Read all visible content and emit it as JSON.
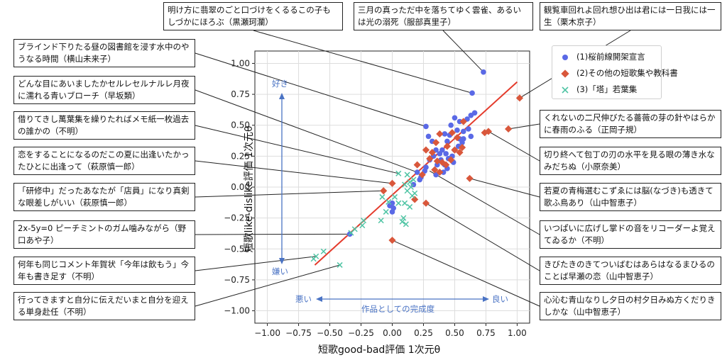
{
  "chart_data": {
    "type": "scatter",
    "xlabel": "短歌good-bad評価 1次元θ",
    "ylabel": "短歌like-dislike評価 1次元θ",
    "xlim": [
      -1.1,
      1.1
    ],
    "ylim": [
      -1.1,
      1.1
    ],
    "xticks": [
      "−1.00",
      "−0.75",
      "−0.50",
      "−0.25",
      "0.00",
      "0.25",
      "0.50",
      "0.75",
      "1.00"
    ],
    "yticks": [
      "1.00",
      "0.75",
      "0.50",
      "0.25",
      "0.00",
      "−0.25",
      "−0.50",
      "−0.75",
      "−1.00"
    ],
    "grid": true,
    "legend_position": "top-right",
    "series": [
      {
        "name": "(1)桜前線開架宣言",
        "color": "#5a69e6",
        "marker": "circle",
        "points": [
          [
            0.73,
            0.93
          ],
          [
            0.64,
            0.76
          ],
          [
            0.27,
            0.49
          ],
          [
            0.32,
            0.37
          ],
          [
            0.35,
            0.3
          ],
          [
            0.33,
            0.25
          ],
          [
            0.27,
            0.16
          ],
          [
            0.26,
            0.13
          ],
          [
            0.42,
            0.43
          ],
          [
            0.44,
            0.37
          ],
          [
            0.47,
            0.5
          ],
          [
            0.5,
            0.56
          ],
          [
            0.52,
            0.46
          ],
          [
            0.54,
            0.53
          ],
          [
            0.57,
            0.45
          ],
          [
            0.61,
            0.47
          ],
          [
            0.63,
            0.58
          ],
          [
            0.66,
            0.6
          ],
          [
            0.63,
            0.41
          ],
          [
            0.6,
            0.55
          ],
          [
            0.57,
            0.39
          ],
          [
            0.4,
            0.3
          ],
          [
            0.43,
            0.27
          ],
          [
            0.45,
            0.23
          ],
          [
            0.48,
            0.25
          ],
          [
            0.5,
            0.3
          ],
          [
            0.53,
            0.33
          ],
          [
            0.56,
            0.36
          ],
          [
            0.39,
            0.22
          ],
          [
            0.36,
            0.18
          ],
          [
            0.3,
            0.22
          ],
          [
            0.42,
            0.18
          ],
          [
            0.46,
            0.42
          ],
          [
            0.38,
            0.27
          ],
          [
            0.2,
            0.12
          ],
          [
            0.23,
            0.08
          ],
          [
            0.17,
            0.02
          ],
          [
            0.0,
            -0.13
          ],
          [
            -0.02,
            -0.15
          ],
          [
            0.01,
            -0.17
          ],
          [
            0.44,
            0.15
          ],
          [
            0.49,
            0.2
          ],
          [
            0.35,
            0.1
          ],
          [
            0.41,
            0.12
          ],
          [
            0.54,
            0.39
          ],
          [
            0.29,
            0.41
          ],
          [
            0.22,
            0.06
          ],
          [
            -0.34,
            -0.38
          ],
          [
            0.0,
            -0.2
          ]
        ]
      },
      {
        "name": "(2)その他の短歌集や教科書",
        "color": "#d9573b",
        "marker": "diamond",
        "points": [
          [
            1.02,
            0.72
          ],
          [
            0.93,
            0.47
          ],
          [
            0.77,
            0.45
          ],
          [
            0.74,
            0.44
          ],
          [
            0.62,
            0.07
          ],
          [
            0.27,
            -0.13
          ],
          [
            0.18,
            -0.1
          ],
          [
            0.0,
            -0.43
          ],
          [
            0.0,
            0.03
          ],
          [
            -0.07,
            -0.03
          ],
          [
            0.57,
            0.53
          ],
          [
            0.48,
            0.44
          ],
          [
            0.44,
            0.33
          ],
          [
            0.38,
            0.43
          ],
          [
            0.35,
            0.36
          ],
          [
            0.4,
            0.2
          ],
          [
            0.5,
            0.3
          ],
          [
            0.56,
            0.32
          ],
          [
            0.54,
            0.28
          ],
          [
            0.32,
            0.28
          ],
          [
            0.2,
            0.18
          ],
          [
            0.27,
            0.3
          ],
          [
            0.43,
            0.18
          ],
          [
            0.47,
            0.22
          ],
          [
            0.36,
            0.21
          ],
          [
            0.34,
            0.14
          ],
          [
            0.52,
            0.4
          ],
          [
            0.3,
            0.23
          ],
          [
            0.38,
            0.12
          ],
          [
            0.24,
            0.1
          ]
        ]
      },
      {
        "name": "(3)「塔」若葉集",
        "color": "#4fc4a4",
        "marker": "x",
        "points": [
          [
            -0.63,
            -0.58
          ],
          [
            -0.61,
            -0.56
          ],
          [
            -0.55,
            -0.52
          ],
          [
            -0.42,
            -0.63
          ],
          [
            -0.33,
            -0.37
          ],
          [
            -0.3,
            -0.34
          ],
          [
            -0.23,
            -0.27
          ],
          [
            -0.24,
            -0.31
          ],
          [
            -0.09,
            -0.27
          ],
          [
            -0.05,
            -0.2
          ],
          [
            -0.03,
            -0.12
          ],
          [
            -0.08,
            -0.08
          ],
          [
            0.02,
            -0.08
          ],
          [
            0.05,
            -0.13
          ],
          [
            0.08,
            -0.28
          ],
          [
            0.09,
            -0.25
          ],
          [
            0.11,
            -0.3
          ],
          [
            0.1,
            -0.13
          ],
          [
            0.14,
            -0.16
          ],
          [
            0.16,
            -0.07
          ],
          [
            0.15,
            0.0
          ],
          [
            0.14,
            0.04
          ],
          [
            0.17,
            0.06
          ],
          [
            0.05,
            0.11
          ],
          [
            0.1,
            0.02
          ],
          [
            0.12,
            0.1
          ],
          [
            0.12,
            -0.03
          ],
          [
            0.18,
            -0.05
          ]
        ]
      }
    ],
    "fit_line": {
      "color": "#e43b2c",
      "points": [
        [
          -0.62,
          -0.63
        ],
        [
          1.0,
          0.85
        ]
      ]
    },
    "annotations": {
      "like": "好き",
      "dislike": "嫌い",
      "bad": "悪い",
      "good": "良い",
      "quality": "作品としての完成度"
    },
    "callouts": [
      {
        "text": "明け方に翡翠のごと口づけをくるるこの子もしづかにほろぶ（黒瀬珂瀾）",
        "px": 0.64,
        "py": 0.76
      },
      {
        "text": "三月の真っただ中を落ちてゆく雲雀、あるいは光の溺死（服部真里子）",
        "px": 0.73,
        "py": 0.93
      },
      {
        "text": "観覧車回れよ回れ想ひ出は君には一日我には一生（栗木京子）",
        "px": 1.02,
        "py": 0.72
      },
      {
        "text": "ブラインド下りたる昼の図書館を浸す水中のやうなる時間（横山未来子）",
        "px": 0.27,
        "py": 0.49
      },
      {
        "text": "どんな目にあいましたかセルレセルナルレ月夜に濡れる青いブローチ（早坂類）",
        "px": 0.2,
        "py": 0.12
      },
      {
        "text": "借りてきし萬葉集を繰りたればメモ紙一枚過去の誰かの（不明）",
        "px": 0.05,
        "py": 0.11
      },
      {
        "text": "恋をすることになるのだこの夏に出逢いたかったひとに出逢って（萩原慎一郎）",
        "px": 0.0,
        "py": 0.03
      },
      {
        "text": "「研修中」だったあなたが「店員」になり真剣な眼差しがいい（萩原慎一郎）",
        "px": -0.07,
        "py": -0.03
      },
      {
        "text": "2x-5y=0 ピーチミントのガム噛みながら（野口あや子）",
        "px": -0.34,
        "py": -0.38
      },
      {
        "text": "何年も同じコメント年賀状「今年は飲もう」今年も書き足す（不明）",
        "px": -0.61,
        "py": -0.56
      },
      {
        "text": "行ってきますと自分に伝えだいまと自分を迎える単身赴任（不明）",
        "px": -0.42,
        "py": -0.63
      },
      {
        "text": "くれないの二尺伸びたる薔薇の芽の針やはらかに春雨のふる（正岡子規）",
        "px": 0.93,
        "py": 0.47
      },
      {
        "text": "切り終へて包丁の刃の水平を見る眼の薄き水なみだちぬ（小原奈美）",
        "px": 0.77,
        "py": 0.45
      },
      {
        "text": "若夏の青梅選むこずゑには脳(なづき)も透きて歌ふ鳥あり（山中智恵子）",
        "px": 0.62,
        "py": 0.07
      },
      {
        "text": "いつぱいに広げし掌ドの音をリコーダーよ覚えてゐるか（不明）",
        "px": 0.3,
        "py": 0.13
      },
      {
        "text": "きびたきのきてついばむはあらはなるまひるのことば早瀬の恋（山中智恵子）",
        "px": 0.27,
        "py": -0.13
      },
      {
        "text": "心沁む青山なりし夕日の村夕日みぬ方くだりきしかな（山中智恵子）",
        "px": 0.0,
        "py": -0.43
      }
    ]
  }
}
